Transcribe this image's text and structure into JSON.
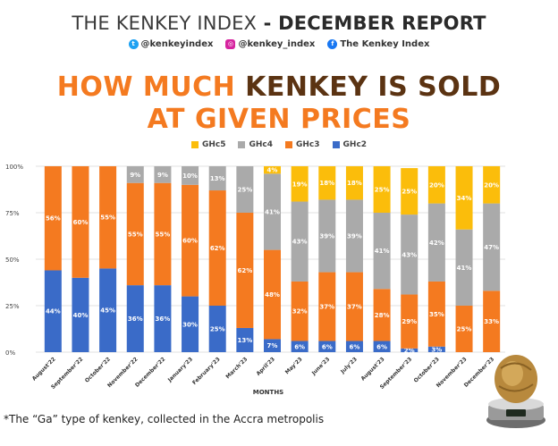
{
  "header": {
    "title_regular": "THE KENKEY INDEX",
    "title_dash": " - ",
    "title_bold": "DECEMBER REPORT",
    "socials": [
      {
        "icon": "twitter-icon",
        "label": "@kenkeyindex"
      },
      {
        "icon": "instagram-icon",
        "label": "@kenkey_index"
      },
      {
        "icon": "facebook-icon",
        "label": "The Kenkey Index"
      }
    ],
    "headline_line1_orange": "HOW MUCH ",
    "headline_line1_brown": "KENKEY IS SOLD",
    "headline_line2_orange": "AT GIVEN PRICES"
  },
  "footnote": "*The “Ga” type of kenkey, collected in the Accra metropolis",
  "colors": {
    "GHc5": "#fbbd0b",
    "GHc4": "#aaaaaa",
    "GHc3": "#f47a20",
    "GHc2": "#3a6bc8"
  },
  "chart_data": {
    "type": "bar",
    "stacked": true,
    "xlabel": "MONTHS",
    "ylabel": "",
    "ylim": [
      0,
      100
    ],
    "y_ticks": [
      "0%",
      "25%",
      "50%",
      "75%",
      "100%"
    ],
    "categories": [
      "August'22",
      "September'22",
      "October'22",
      "November'22",
      "December'22",
      "January'23",
      "February'23",
      "March'23",
      "April'23",
      "May'23",
      "June'23",
      "July'23",
      "August'23",
      "September'23",
      "October'23",
      "November'23",
      "December'23"
    ],
    "series": [
      {
        "name": "GHc2",
        "values": [
          44,
          40,
          45,
          36,
          36,
          30,
          25,
          13,
          7,
          6,
          6,
          6,
          6,
          2,
          3,
          0,
          0
        ],
        "labels": [
          "44%",
          "40%",
          "45%",
          "36%",
          "36%",
          "30%",
          "25%",
          "13%",
          "7%",
          "6%",
          "6%",
          "6%",
          "6%",
          "2%",
          "3%",
          "",
          ""
        ]
      },
      {
        "name": "GHc3",
        "values": [
          56,
          60,
          55,
          55,
          55,
          60,
          62,
          62,
          48,
          32,
          37,
          37,
          28,
          29,
          35,
          25,
          33
        ],
        "labels": [
          "56%",
          "60%",
          "55%",
          "55%",
          "55%",
          "60%",
          "62%",
          "62%",
          "48%",
          "32%",
          "37%",
          "37%",
          "28%",
          "29%",
          "35%",
          "25%",
          "33%"
        ]
      },
      {
        "name": "GHc4",
        "values": [
          0,
          0,
          0,
          9,
          9,
          10,
          13,
          25,
          41,
          43,
          39,
          39,
          41,
          43,
          42,
          41,
          47
        ],
        "labels": [
          "",
          "",
          "",
          "9%",
          "9%",
          "10%",
          "13%",
          "25%",
          "41%",
          "43%",
          "39%",
          "39%",
          "41%",
          "43%",
          "42%",
          "41%",
          "47%"
        ]
      },
      {
        "name": "GHc5",
        "values": [
          0,
          0,
          0,
          0,
          0,
          0,
          0,
          0,
          4,
          19,
          18,
          18,
          25,
          25,
          20,
          34,
          20
        ],
        "labels": [
          "",
          "",
          "",
          "",
          "",
          "",
          "",
          "",
          "4%",
          "19%",
          "18%",
          "18%",
          "25%",
          "25%",
          "20%",
          "34%",
          "20%"
        ]
      }
    ],
    "legend": {
      "placement": "top",
      "order": [
        "GHc5",
        "GHc4",
        "GHc3",
        "GHc2"
      ]
    },
    "grid": true
  }
}
